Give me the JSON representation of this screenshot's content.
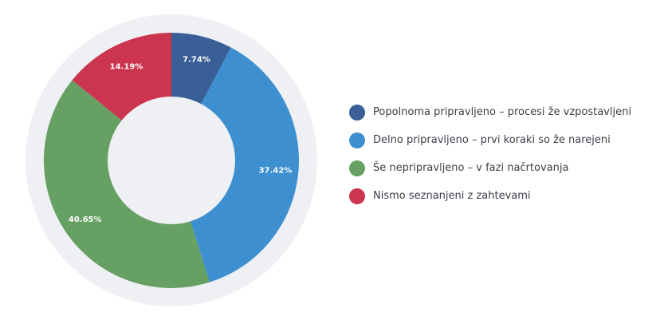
{
  "chart_data": {
    "type": "pie",
    "title": "",
    "categories": [
      "Popolnoma pripravljeno – procesi že vzpostavljeni",
      "Delno pripravljeno – prvi koraki so že narejeni",
      "Še nepripravljeno – v fazi načrtovanja",
      "Nismo seznanjeni z zahtevami"
    ],
    "values": [
      7.74,
      37.42,
      40.65,
      14.19
    ],
    "labels": [
      "7.74%",
      "37.42%",
      "40.65%",
      "14.19%"
    ],
    "colors": [
      "#3a5f97",
      "#3d8fd0",
      "#67a063",
      "#cc3550"
    ],
    "donut": true,
    "legend_position": "right"
  }
}
